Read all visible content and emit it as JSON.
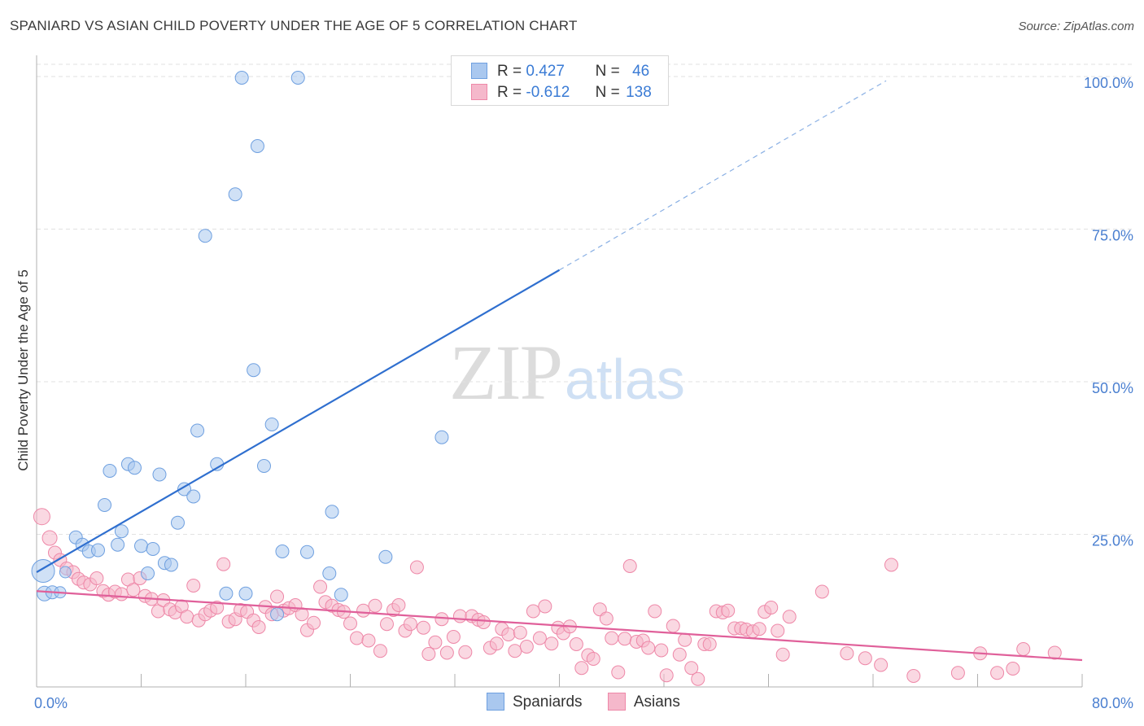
{
  "header": {
    "title": "SPANIARD VS ASIAN CHILD POVERTY UNDER THE AGE OF 5 CORRELATION CHART",
    "source": "Source: ZipAtlas.com"
  },
  "watermark": {
    "part1": "ZIP",
    "part2": "atlas"
  },
  "legend": {
    "rows": [
      {
        "r_label": "R =",
        "r_value": "0.427",
        "n_label": "N =",
        "n_value": "46",
        "color": "#aac8ef"
      },
      {
        "r_label": "R =",
        "r_value": "-0.612",
        "n_label": "N =",
        "n_value": "138",
        "color": "#f5b8cb"
      }
    ]
  },
  "bottom_legend": [
    {
      "label": "Spaniards",
      "color": "#aac8ef"
    },
    {
      "label": "Asians",
      "color": "#f5b8cb"
    }
  ],
  "chart_data": {
    "type": "scatter",
    "title": "SPANIARD VS ASIAN CHILD POVERTY UNDER THE AGE OF 5 CORRELATION CHART",
    "xlabel": "",
    "ylabel": "Child Poverty Under the Age of 5",
    "xlim": [
      0,
      80
    ],
    "ylim": [
      0,
      102
    ],
    "x_tick_labels": [
      {
        "value": 0,
        "label": "0.0%"
      },
      {
        "value": 80,
        "label": "80.0%"
      }
    ],
    "y_tick_labels": [
      {
        "value": 25,
        "label": "25.0%"
      },
      {
        "value": 50,
        "label": "50.0%"
      },
      {
        "value": 75,
        "label": "75.0%"
      },
      {
        "value": 100,
        "label": "100.0%"
      }
    ],
    "grid": true,
    "legend_position": "top-center",
    "series": [
      {
        "name": "Spaniards",
        "color": "#aac8ef",
        "stroke": "#6fa0e0",
        "trend_color": "#2f6fcf",
        "trend": {
          "x0": 0,
          "y0": 18.8,
          "x1": 40,
          "y1": 68.3,
          "dashed_to_x": 65,
          "dashed_to_y": 99.3
        },
        "points": [
          [
            0.5,
            19.0,
            14
          ],
          [
            0.6,
            15.3,
            9
          ],
          [
            1.2,
            15.5,
            8
          ],
          [
            1.8,
            15.5,
            7
          ],
          [
            2.2,
            18.8,
            7
          ],
          [
            3.0,
            24.5,
            8
          ],
          [
            3.5,
            23.3,
            8
          ],
          [
            4.0,
            22.2,
            8
          ],
          [
            4.7,
            22.4,
            8
          ],
          [
            5.2,
            29.8,
            8
          ],
          [
            5.6,
            35.4,
            8
          ],
          [
            6.2,
            23.3,
            8
          ],
          [
            6.5,
            25.5,
            8
          ],
          [
            7.0,
            36.5,
            8
          ],
          [
            7.5,
            35.9,
            8
          ],
          [
            8.0,
            23.1,
            8
          ],
          [
            8.5,
            18.6,
            8
          ],
          [
            8.9,
            22.6,
            8
          ],
          [
            9.4,
            34.8,
            8
          ],
          [
            9.8,
            20.3,
            8
          ],
          [
            10.3,
            20.0,
            8
          ],
          [
            10.8,
            26.9,
            8
          ],
          [
            11.3,
            32.4,
            8
          ],
          [
            12.0,
            31.2,
            8
          ],
          [
            12.3,
            42.0,
            8
          ],
          [
            12.9,
            73.9,
            8
          ],
          [
            13.8,
            36.5,
            8
          ],
          [
            14.5,
            15.3,
            8
          ],
          [
            15.2,
            80.7,
            8
          ],
          [
            15.7,
            99.8,
            8
          ],
          [
            16.0,
            15.3,
            8
          ],
          [
            16.6,
            51.9,
            8
          ],
          [
            16.9,
            88.6,
            8
          ],
          [
            17.4,
            36.2,
            8
          ],
          [
            18.0,
            43.0,
            8
          ],
          [
            18.4,
            11.9,
            8
          ],
          [
            18.8,
            22.2,
            8
          ],
          [
            20.0,
            99.8,
            8
          ],
          [
            20.7,
            22.1,
            8
          ],
          [
            22.4,
            18.6,
            8
          ],
          [
            22.6,
            28.7,
            8
          ],
          [
            23.3,
            15.1,
            8
          ],
          [
            26.7,
            21.3,
            8
          ],
          [
            31.0,
            40.9,
            8
          ]
        ]
      },
      {
        "name": "Asians",
        "color": "#f5b8cb",
        "stroke": "#ee88a8",
        "trend_color": "#e0609a",
        "trend": {
          "x0": 0,
          "y0": 15.7,
          "x1": 80,
          "y1": 4.4
        },
        "points": [
          [
            0.4,
            27.9,
            10
          ],
          [
            1.0,
            24.4,
            9
          ],
          [
            1.4,
            22.0,
            8
          ],
          [
            1.8,
            20.8,
            8
          ],
          [
            2.3,
            19.4,
            8
          ],
          [
            2.8,
            18.8,
            8
          ],
          [
            3.2,
            17.7,
            8
          ],
          [
            3.6,
            17.1,
            8
          ],
          [
            4.1,
            16.8,
            8
          ],
          [
            4.6,
            17.8,
            8
          ],
          [
            5.1,
            15.7,
            8
          ],
          [
            5.5,
            15.1,
            8
          ],
          [
            6.0,
            15.6,
            8
          ],
          [
            6.5,
            15.2,
            8
          ],
          [
            7.0,
            17.6,
            8
          ],
          [
            7.4,
            15.9,
            8
          ],
          [
            7.9,
            17.8,
            8
          ],
          [
            8.3,
            14.9,
            8
          ],
          [
            8.8,
            14.4,
            8
          ],
          [
            9.3,
            12.4,
            8
          ],
          [
            9.7,
            14.2,
            8
          ],
          [
            10.2,
            12.7,
            8
          ],
          [
            10.6,
            12.2,
            8
          ],
          [
            11.1,
            13.2,
            8
          ],
          [
            11.5,
            11.5,
            8
          ],
          [
            12.0,
            16.6,
            8
          ],
          [
            12.4,
            10.9,
            8
          ],
          [
            12.9,
            11.9,
            8
          ],
          [
            13.3,
            12.5,
            8
          ],
          [
            13.8,
            13.0,
            8
          ],
          [
            14.3,
            20.1,
            8
          ],
          [
            14.7,
            10.7,
            8
          ],
          [
            15.2,
            11.1,
            8
          ],
          [
            15.6,
            12.6,
            8
          ],
          [
            16.1,
            12.3,
            8
          ],
          [
            16.6,
            10.9,
            8
          ],
          [
            17.0,
            9.8,
            8
          ],
          [
            17.5,
            13.1,
            8
          ],
          [
            18.0,
            11.9,
            8
          ],
          [
            18.4,
            14.8,
            8
          ],
          [
            18.9,
            12.5,
            8
          ],
          [
            19.3,
            12.9,
            8
          ],
          [
            19.8,
            13.4,
            8
          ],
          [
            20.3,
            11.9,
            8
          ],
          [
            20.7,
            9.3,
            8
          ],
          [
            21.2,
            10.5,
            8
          ],
          [
            21.7,
            16.4,
            8
          ],
          [
            22.1,
            13.9,
            8
          ],
          [
            22.6,
            13.3,
            8
          ],
          [
            23.1,
            12.6,
            8
          ],
          [
            23.5,
            12.3,
            8
          ],
          [
            24.0,
            10.4,
            8
          ],
          [
            24.5,
            8.0,
            8
          ],
          [
            25.0,
            12.5,
            8
          ],
          [
            25.4,
            7.6,
            8
          ],
          [
            25.9,
            13.3,
            8
          ],
          [
            26.3,
            5.9,
            8
          ],
          [
            26.8,
            10.3,
            8
          ],
          [
            27.3,
            12.6,
            8
          ],
          [
            27.7,
            13.4,
            8
          ],
          [
            28.2,
            9.2,
            8
          ],
          [
            28.6,
            10.3,
            8
          ],
          [
            29.1,
            19.6,
            8
          ],
          [
            29.6,
            9.7,
            8
          ],
          [
            30.0,
            5.4,
            8
          ],
          [
            30.5,
            7.3,
            8
          ],
          [
            31.0,
            11.1,
            8
          ],
          [
            31.4,
            5.6,
            8
          ],
          [
            31.9,
            8.2,
            8
          ],
          [
            32.4,
            11.6,
            8
          ],
          [
            32.8,
            5.7,
            8
          ],
          [
            33.3,
            11.6,
            8
          ],
          [
            33.8,
            11.0,
            8
          ],
          [
            34.2,
            10.6,
            8
          ],
          [
            34.7,
            6.4,
            8
          ],
          [
            35.2,
            7.1,
            8
          ],
          [
            35.6,
            9.5,
            8
          ],
          [
            36.1,
            8.6,
            8
          ],
          [
            36.6,
            5.9,
            8
          ],
          [
            37.0,
            8.9,
            8
          ],
          [
            37.5,
            6.6,
            8
          ],
          [
            38.0,
            12.4,
            8
          ],
          [
            38.5,
            8.0,
            8
          ],
          [
            38.9,
            13.2,
            8
          ],
          [
            39.4,
            7.1,
            8
          ],
          [
            39.9,
            9.7,
            8
          ],
          [
            40.3,
            8.8,
            8
          ],
          [
            40.8,
            9.9,
            8
          ],
          [
            41.3,
            7.0,
            8
          ],
          [
            41.7,
            3.1,
            8
          ],
          [
            42.2,
            5.2,
            8
          ],
          [
            42.6,
            4.6,
            8
          ],
          [
            43.1,
            12.7,
            8
          ],
          [
            43.6,
            11.2,
            8
          ],
          [
            44.0,
            8.0,
            8
          ],
          [
            44.5,
            2.4,
            8
          ],
          [
            45.0,
            7.9,
            8
          ],
          [
            45.4,
            19.8,
            8
          ],
          [
            45.9,
            7.4,
            8
          ],
          [
            46.4,
            7.6,
            8
          ],
          [
            46.8,
            6.4,
            8
          ],
          [
            47.3,
            12.4,
            8
          ],
          [
            47.8,
            6.0,
            8
          ],
          [
            48.2,
            1.9,
            8
          ],
          [
            48.7,
            10.0,
            8
          ],
          [
            49.2,
            5.3,
            8
          ],
          [
            49.6,
            7.7,
            8
          ],
          [
            50.1,
            3.1,
            8
          ],
          [
            50.6,
            1.3,
            8
          ],
          [
            51.1,
            7.0,
            8
          ],
          [
            51.5,
            7.0,
            8
          ],
          [
            52.0,
            12.4,
            8
          ],
          [
            52.5,
            12.2,
            8
          ],
          [
            52.9,
            12.5,
            8
          ],
          [
            53.4,
            9.6,
            8
          ],
          [
            53.9,
            9.6,
            8
          ],
          [
            54.3,
            9.4,
            8
          ],
          [
            54.8,
            9.1,
            8
          ],
          [
            55.3,
            9.5,
            8
          ],
          [
            55.7,
            12.3,
            8
          ],
          [
            56.2,
            13.0,
            8
          ],
          [
            56.7,
            9.2,
            8
          ],
          [
            57.1,
            5.3,
            8
          ],
          [
            57.6,
            11.5,
            8
          ],
          [
            60.1,
            15.6,
            8
          ],
          [
            62.0,
            5.5,
            8
          ],
          [
            63.4,
            4.7,
            8
          ],
          [
            64.6,
            3.6,
            8
          ],
          [
            65.4,
            20.0,
            8
          ],
          [
            67.1,
            1.8,
            8
          ],
          [
            70.5,
            2.3,
            8
          ],
          [
            72.2,
            5.5,
            8
          ],
          [
            73.5,
            2.3,
            8
          ],
          [
            74.7,
            3.0,
            8
          ],
          [
            75.5,
            6.2,
            8
          ],
          [
            77.9,
            5.6,
            8
          ]
        ]
      }
    ]
  }
}
